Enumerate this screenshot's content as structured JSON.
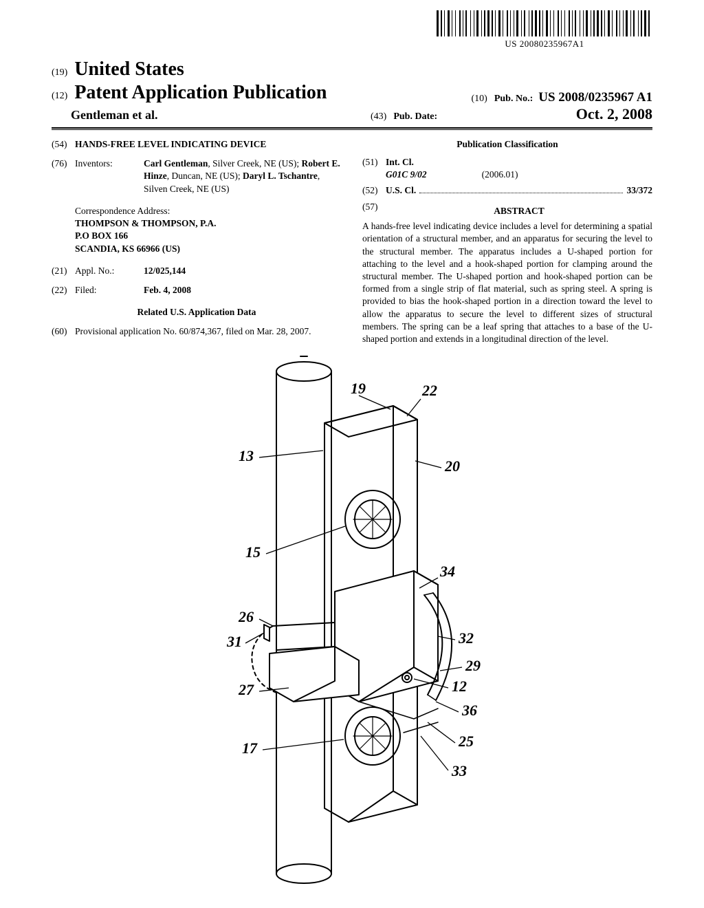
{
  "barcode": {
    "text": "US 20080235967A1",
    "bar_widths": [
      3,
      1,
      2,
      1,
      1,
      2,
      3,
      1,
      1,
      2,
      1,
      3,
      2,
      1,
      1,
      1,
      2,
      3,
      1,
      2,
      1,
      1,
      3,
      2,
      1,
      1,
      2,
      1,
      3,
      1,
      2,
      1,
      1,
      2,
      3,
      1,
      1,
      3,
      2,
      1,
      1,
      2,
      1,
      1,
      3,
      2,
      1,
      1,
      2,
      3,
      1,
      1,
      2,
      1,
      3,
      1,
      2,
      1,
      1,
      2,
      3,
      1,
      1,
      2,
      1,
      3,
      2,
      1,
      1,
      2,
      1,
      3,
      2,
      1,
      1,
      1,
      2,
      3,
      1,
      2,
      1,
      1,
      3,
      2,
      1,
      1,
      2,
      1,
      3,
      1,
      2,
      1,
      1,
      2,
      3,
      1,
      1,
      3,
      2,
      1,
      1,
      2,
      1,
      1,
      3,
      2,
      1,
      1,
      2,
      3,
      1,
      1,
      2,
      1,
      3,
      1,
      2,
      3
    ]
  },
  "header": {
    "code19": "(19)",
    "country": "United States",
    "code12": "(12)",
    "pub_type": "Patent Application Publication",
    "authors": "Gentleman et al.",
    "code10": "(10)",
    "pub_no_label": "Pub. No.:",
    "pub_no": "US 2008/0235967 A1",
    "code43": "(43)",
    "pub_date_label": "Pub. Date:",
    "pub_date": "Oct. 2, 2008"
  },
  "left": {
    "code54": "(54)",
    "title": "HANDS-FREE LEVEL INDICATING DEVICE",
    "code76": "(76)",
    "inventors_label": "Inventors:",
    "inventors_html": "Carl Gentleman, Silver Creek, NE (US); Robert E. Hinze, Duncan, NE (US); Daryl L. Tschantre, Silven Creek, NE (US)",
    "inventors_p1": "Carl Gentleman",
    "inventors_p1_loc": ", Silver Creek, NE (US); ",
    "inventors_p2": "Robert E. Hinze",
    "inventors_p2_loc": ", Duncan, NE (US); ",
    "inventors_p3": "Daryl L. Tschantre",
    "inventors_p3_loc": ", Silven Creek, NE (US)",
    "corr_label": "Correspondence Address:",
    "corr_l1": "THOMPSON & THOMPSON, P.A.",
    "corr_l2": "P.O BOX 166",
    "corr_l3": "SCANDIA, KS 66966 (US)",
    "code21": "(21)",
    "appl_label": "Appl. No.:",
    "appl_no": "12/025,144",
    "code22": "(22)",
    "filed_label": "Filed:",
    "filed": "Feb. 4, 2008",
    "related_heading": "Related U.S. Application Data",
    "code60": "(60)",
    "provisional": "Provisional application No. 60/874,367, filed on Mar. 28, 2007."
  },
  "right": {
    "pc_heading": "Publication Classification",
    "code51": "(51)",
    "intcl_label": "Int. Cl.",
    "intcl_val": "G01C 9/02",
    "intcl_year": "(2006.01)",
    "code52": "(52)",
    "uscl_label": "U.S. Cl.",
    "uscl_val": "33/372",
    "code57": "(57)",
    "abstract_heading": "ABSTRACT",
    "abstract": "A hands-free level indicating device includes a level for determining a spatial orientation of a structural member, and an apparatus for securing the level to the structural member. The apparatus includes a U-shaped portion for attaching to the level and a hook-shaped portion for clamping around the structural member. The U-shaped portion and hook-shaped portion can be formed from a single strip of flat material, such as spring steel. A spring is provided to bias the hook-shaped portion in a direction toward the level to allow the apparatus to secure the level to different sizes of structural members. The spring can be a leaf spring that attaches to a base of the U-shaped portion and extends in a longitudinal direction of the level."
  },
  "figure": {
    "ref_19": "19",
    "ref_22": "22",
    "ref_13": "13",
    "ref_20": "20",
    "ref_15": "15",
    "ref_34": "34",
    "ref_26": "26",
    "ref_31": "31",
    "ref_32": "32",
    "ref_29": "29",
    "ref_27": "27",
    "ref_12": "12",
    "ref_36": "36",
    "ref_17": "17",
    "ref_25": "25",
    "ref_33": "33"
  }
}
